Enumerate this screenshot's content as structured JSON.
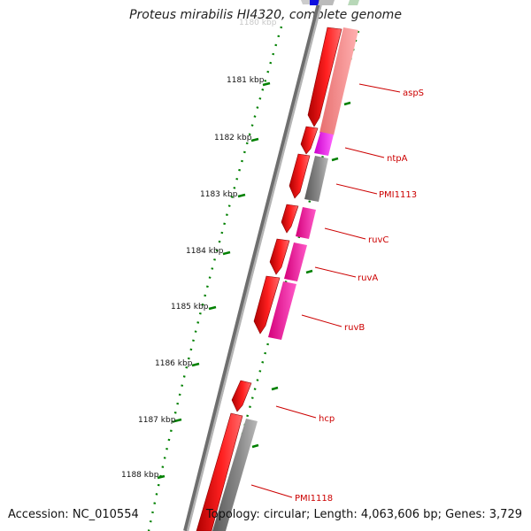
{
  "title": "Proteus mirabilis HI4320, complete genome",
  "accession": "Accession: NC_010554",
  "summary": "Topology: circular; Length: 4,063,606 bp; Genes: 3,729",
  "ticks": [
    {
      "label": "1180 kbp",
      "faint": true
    },
    {
      "label": "1181 kbp"
    },
    {
      "label": "1182 kbp"
    },
    {
      "label": "1183 kbp"
    },
    {
      "label": "1184 kbp"
    },
    {
      "label": "1185 kbp"
    },
    {
      "label": "1186 kbp"
    },
    {
      "label": "1187 kbp"
    },
    {
      "label": "1188 kbp"
    }
  ],
  "genes": [
    {
      "name": "aspS",
      "color": "#f08080"
    },
    {
      "name": "ntpA",
      "color": "#ff33cc"
    },
    {
      "name": "PMI1113",
      "color": "#666666"
    },
    {
      "name": "ruvC",
      "color": "#ff1493"
    },
    {
      "name": "ruvA",
      "color": "#ff1493"
    },
    {
      "name": "ruvB",
      "color": "#ff1493"
    },
    {
      "name": "hcp",
      "color": "#ff0000"
    },
    {
      "name": "PMI1118",
      "color": "#666666"
    }
  ],
  "colors": {
    "cds": "#ff0000",
    "backbone": "#888888",
    "ticks": "#008000",
    "label_line": "#cc0000"
  }
}
